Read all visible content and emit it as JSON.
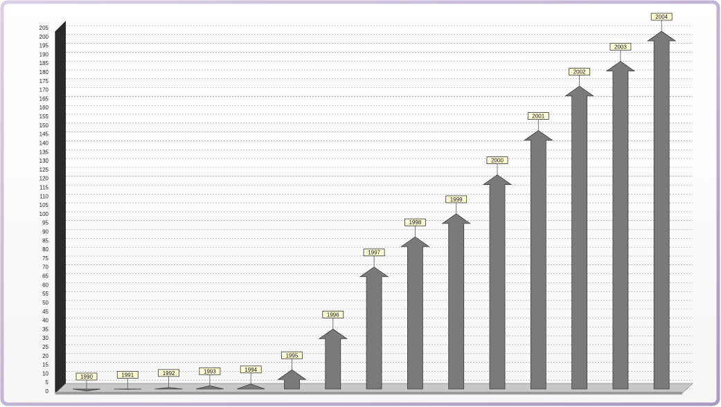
{
  "chart_data": {
    "type": "bar",
    "style": "3d-arrow-columns",
    "categories": [
      "1990",
      "1991",
      "1992",
      "1993",
      "1994",
      "1995",
      "1996",
      "1997",
      "1998",
      "1999",
      "2000",
      "2001",
      "2002",
      "2003",
      "2004"
    ],
    "values": [
      0,
      1,
      2,
      3,
      4,
      12,
      35,
      70,
      87,
      100,
      122,
      147,
      172,
      186,
      203
    ],
    "ylim": [
      0,
      205
    ],
    "y_ticks": [
      0,
      5,
      10,
      15,
      20,
      25,
      30,
      35,
      40,
      45,
      50,
      55,
      60,
      65,
      70,
      75,
      80,
      85,
      90,
      95,
      100,
      105,
      110,
      115,
      120,
      125,
      130,
      135,
      140,
      145,
      150,
      155,
      160,
      165,
      170,
      175,
      180,
      185,
      190,
      195,
      200,
      205
    ],
    "grid": true,
    "legend": "none",
    "bar_color": "#7a7a7a",
    "label_box_color": "#ffffd8"
  }
}
